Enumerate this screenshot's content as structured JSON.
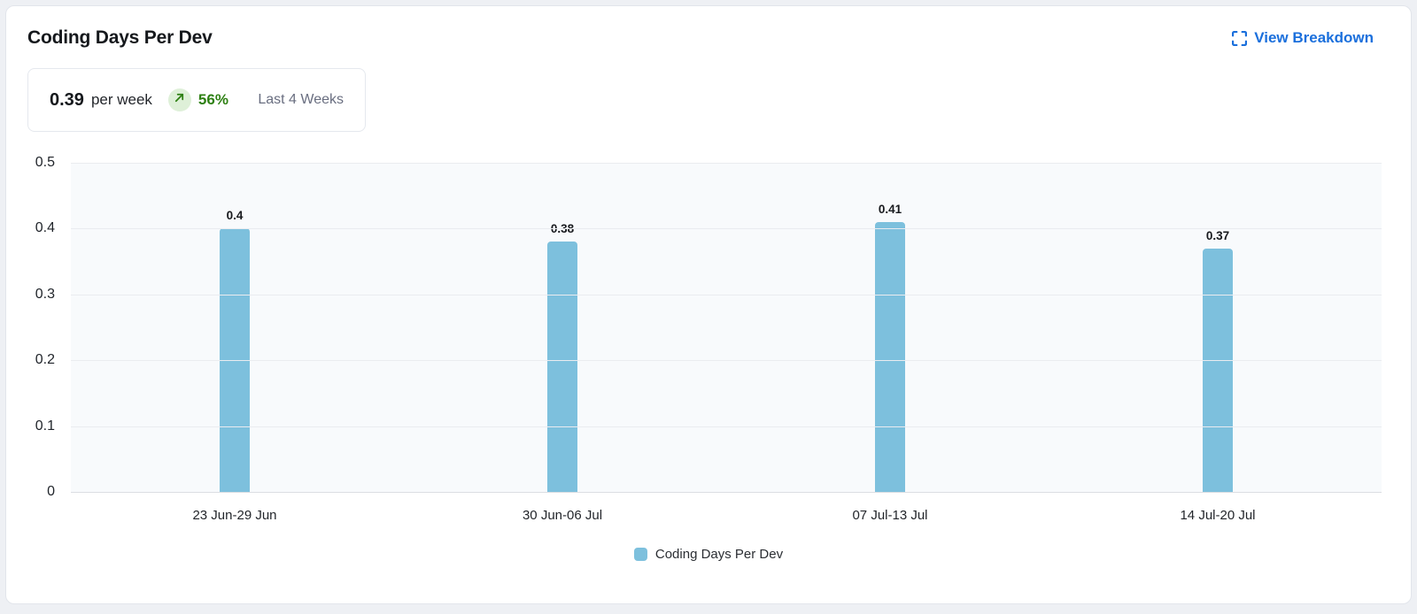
{
  "header": {
    "title": "Coding Days Per Dev",
    "view_breakdown_label": "View Breakdown"
  },
  "summary": {
    "value": "0.39",
    "unit": "per week",
    "trend_direction": "up",
    "trend_pct": "56%",
    "period": "Last 4 Weeks"
  },
  "colors": {
    "accent_blue": "#1a6fdc",
    "bar_blue": "#7dc0dd",
    "trend_green": "#2e8013",
    "trend_badge_bg": "#def0d8",
    "chart_bg": "#f8fafc",
    "gridline": "#eaecf0",
    "card_border": "#e2e5eb",
    "muted_text": "#696e80"
  },
  "chart_data": {
    "type": "bar",
    "title": "Coding Days Per Dev",
    "categories": [
      "23 Jun-29 Jun",
      "30 Jun-06 Jul",
      "07 Jul-13 Jul",
      "14 Jul-20 Jul"
    ],
    "series": [
      {
        "name": "Coding Days Per Dev",
        "values": [
          0.4,
          0.38,
          0.41,
          0.37
        ]
      }
    ],
    "value_labels": [
      "0.4",
      "0.38",
      "0.41",
      "0.37"
    ],
    "xlabel": "",
    "ylabel": "",
    "ylim": [
      0,
      0.5
    ],
    "yticks": [
      0,
      0.1,
      0.2,
      0.3,
      0.4,
      0.5
    ],
    "ytick_labels": [
      "0",
      "0.1",
      "0.2",
      "0.3",
      "0.4",
      "0.5"
    ],
    "grid": true,
    "legend": [
      "Coding Days Per Dev"
    ],
    "legend_position": "bottom"
  }
}
